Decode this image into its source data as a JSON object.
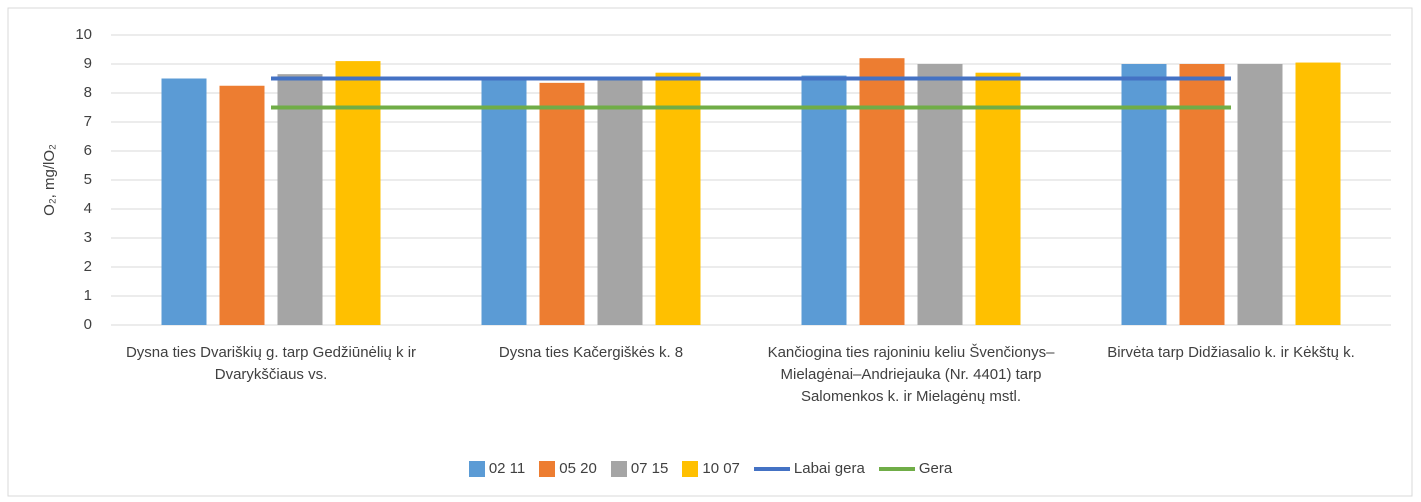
{
  "chart_data": {
    "type": "bar",
    "ylabel": "O₂, mg/lO₂",
    "categories": [
      "Dysna ties Dvariškių g. tarp Gedžiūnėlių k ir Dvarykščiaus vs.",
      "Dysna ties Kačergiškės k. 8",
      "Kančiogina ties rajoniniu keliu Švenčionys–Mielagėnai–Andriejauka (Nr. 4401) tarp Salomenkos k. ir Mielagėnų mstl.",
      "Birvėta tarp Didžiasalio k. ir Kėkštų k."
    ],
    "series": [
      {
        "name": "02 11",
        "type": "bar",
        "color": "#5b9bd5",
        "values": [
          8.5,
          8.5,
          8.6,
          9.0
        ]
      },
      {
        "name": "05 20",
        "type": "bar",
        "color": "#ed7d31",
        "values": [
          8.25,
          8.35,
          9.2,
          9.0
        ]
      },
      {
        "name": "07 15",
        "type": "bar",
        "color": "#a5a5a5",
        "values": [
          8.65,
          8.5,
          9.0,
          9.0
        ]
      },
      {
        "name": "10 07",
        "type": "bar",
        "color": "#ffc000",
        "values": [
          9.1,
          8.7,
          8.7,
          9.05
        ]
      },
      {
        "name": "Labai gera",
        "type": "line",
        "color": "#4472c4",
        "values": [
          8.5,
          8.5,
          8.5,
          8.5
        ]
      },
      {
        "name": "Gera",
        "type": "line",
        "color": "#70ad47",
        "values": [
          7.5,
          7.5,
          7.5,
          7.5
        ]
      }
    ],
    "ylim": [
      0,
      10
    ],
    "yticks": [
      0,
      1,
      2,
      3,
      4,
      5,
      6,
      7,
      8,
      9,
      10
    ],
    "grid": true,
    "legend": "bottom"
  }
}
